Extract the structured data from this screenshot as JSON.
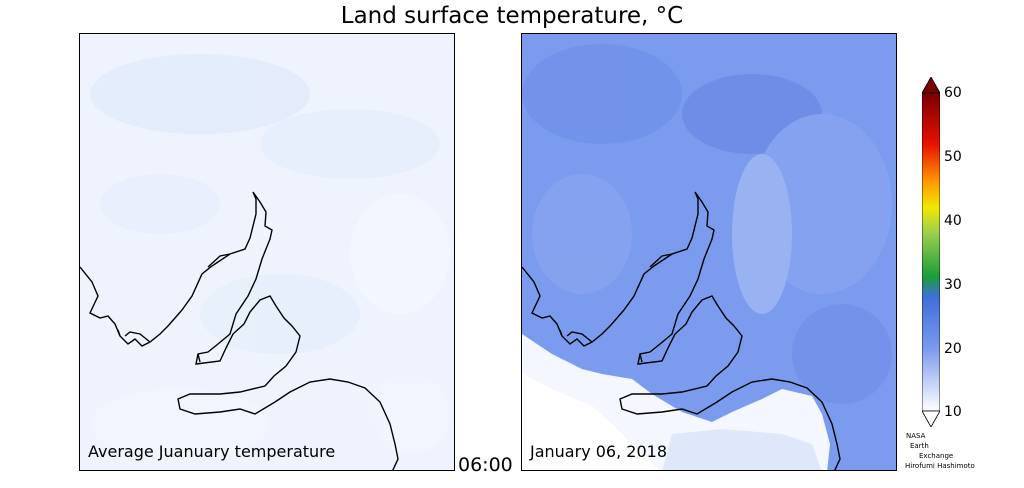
{
  "title": "Land surface temperature, °C",
  "left_panel": {
    "label": "Average Juanuary temperature",
    "fill_color": "#eef3fd"
  },
  "right_panel": {
    "label": "January 06, 2018",
    "fill_color": "#7b9bee"
  },
  "time": "06:00",
  "colorbar": {
    "ticks": [
      "10",
      "20",
      "30",
      "40",
      "50",
      "60"
    ],
    "range": [
      10,
      60
    ],
    "extend": "both",
    "stops": [
      {
        "value": 10,
        "color": "#ffffff"
      },
      {
        "value": 20,
        "color": "#7a98ee"
      },
      {
        "value": 28,
        "color": "#3f6fd8"
      },
      {
        "value": 31,
        "color": "#1a9c3a"
      },
      {
        "value": 38,
        "color": "#9ccf4f"
      },
      {
        "value": 42,
        "color": "#f0e800"
      },
      {
        "value": 46,
        "color": "#ff9a00"
      },
      {
        "value": 52,
        "color": "#e81000"
      },
      {
        "value": 60,
        "color": "#7a0000"
      }
    ]
  },
  "credits": [
    "NASA",
    "Earth",
    "Exchange",
    "Hirofumi Hashimoto"
  ]
}
